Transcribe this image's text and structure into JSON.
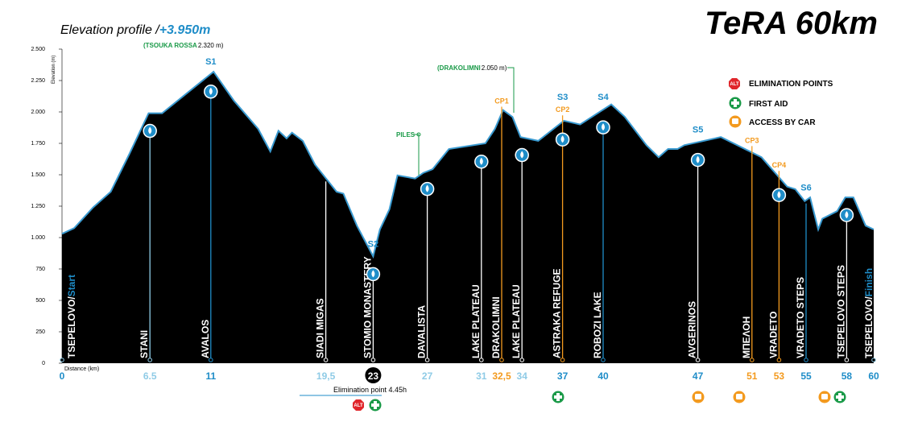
{
  "chart_data": {
    "type": "area",
    "title": "TeRA 60km",
    "subtitle": "Elevation profile / ",
    "total_gain": "+3.950m",
    "ylabel": "Elevation (m)",
    "xlabel": "Distance (km)",
    "color": "#000000",
    "line_color": "#3a9ad0",
    "xlim": [
      0,
      60
    ],
    "ylim": [
      0,
      2500
    ],
    "yticks": [
      0,
      250,
      500,
      750,
      {
        "value": 1000,
        "label": "1.000"
      },
      {
        "value": 1250,
        "label": "1.250"
      },
      {
        "value": 1500,
        "label": "1.500"
      },
      {
        "value": 1750,
        "label": "1.750"
      },
      {
        "value": 2000,
        "label": "2.000"
      },
      {
        "value": 2250,
        "label": "2.250"
      },
      {
        "value": 2500,
        "label": "2.500"
      }
    ],
    "x": [
      0,
      0.9,
      2.3,
      3.6,
      5.0,
      6.4,
      7.4,
      11.2,
      12.7,
      14.5,
      15.4,
      16.0,
      16.6,
      17.0,
      17.8,
      18.7,
      20.3,
      20.8,
      21.8,
      23.0,
      23.5,
      24.2,
      24.8,
      26.1,
      26.7,
      27.4,
      28.6,
      31.3,
      32.0,
      32.6,
      33.3,
      33.9,
      35.2,
      37.1,
      38.3,
      40.6,
      41.6,
      43.2,
      44.1,
      44.8,
      45.5,
      46.0,
      48.7,
      51.7,
      53.6,
      54.2,
      54.9,
      55.3,
      55.9,
      56.2,
      57.3,
      57.9,
      58.5,
      59.4,
      60
    ],
    "values": [
      1030,
      1075,
      1240,
      1365,
      1670,
      1990,
      1990,
      2320,
      2090,
      1865,
      1685,
      1850,
      1790,
      1835,
      1770,
      1580,
      1365,
      1350,
      1095,
      850,
      1065,
      1225,
      1495,
      1470,
      1515,
      1545,
      1705,
      1750,
      1865,
      2015,
      1960,
      1800,
      1770,
      1930,
      1900,
      2060,
      1960,
      1735,
      1640,
      1705,
      1705,
      1735,
      1800,
      1640,
      1405,
      1385,
      1290,
      1320,
      1065,
      1150,
      1210,
      1320,
      1320,
      1095,
      1065
    ],
    "xticks": [
      {
        "value": 0,
        "label": "0",
        "color": "#1f8dc8"
      },
      {
        "value": 6.5,
        "label": "6.5",
        "color": "#8fcbe6"
      },
      {
        "value": 11,
        "label": "11",
        "color": "#1f8dc8"
      },
      {
        "value": 19.5,
        "label": "19,5",
        "color": "#8fcbe6"
      },
      {
        "value": 23,
        "label": "23",
        "color": "#ffffff",
        "circled": true
      },
      {
        "value": 27,
        "label": "27",
        "color": "#8fcbe6"
      },
      {
        "value": 31,
        "label": "31",
        "color": "#8fcbe6"
      },
      {
        "value": 32.5,
        "label": "32,5",
        "color": "#f39a1e"
      },
      {
        "value": 34,
        "label": "34",
        "color": "#8fcbe6"
      },
      {
        "value": 37,
        "label": "37",
        "color": "#1f8dc8"
      },
      {
        "value": 40,
        "label": "40",
        "color": "#1f8dc8"
      },
      {
        "value": 47,
        "label": "47",
        "color": "#1f8dc8"
      },
      {
        "value": 51,
        "label": "51",
        "color": "#f39a1e"
      },
      {
        "value": 53,
        "label": "53",
        "color": "#f39a1e"
      },
      {
        "value": 55,
        "label": "55",
        "color": "#1f8dc8"
      },
      {
        "value": 58,
        "label": "58",
        "color": "#1f8dc8"
      },
      {
        "value": 60,
        "label": "60",
        "color": "#1f8dc8"
      }
    ],
    "waypoints": [
      {
        "name": "TSEPELOVO/",
        "suffix": "Start",
        "km": 0,
        "color": "#8fcbe6"
      },
      {
        "name": "STANI",
        "km": 6.5,
        "color": "#8fcbe6",
        "water": true
      },
      {
        "name": "AVALOS",
        "km": 11,
        "color": "#1f8dc8",
        "water": true
      },
      {
        "name": "SIADI MIGAS",
        "km": 19.5,
        "color": "#ffffff"
      },
      {
        "name": "STOMIO MONASTERY",
        "km": 23,
        "color": "#ffffff",
        "water": true
      },
      {
        "name": "DAVALISTA",
        "km": 27,
        "color": "#ffffff",
        "water": true
      },
      {
        "name": "LAKE PLATEAU",
        "km": 31,
        "color": "#ffffff",
        "water": true
      },
      {
        "name": "DRAKOLIMNI",
        "km": 32.5,
        "color": "#f39a1e"
      },
      {
        "name": "LAKE PLATEAU",
        "km": 34,
        "color": "#ffffff",
        "water": true
      },
      {
        "name": "ASTRAKA REFUGE",
        "km": 37,
        "color": "#f39a1e",
        "water": true
      },
      {
        "name": "ROBOZI LAKE",
        "km": 40,
        "color": "#1f8dc8",
        "water": true
      },
      {
        "name": "AVGERINOS",
        "km": 47,
        "color": "#ffffff",
        "water": true
      },
      {
        "name": "ΜΠΕΛΟΗ",
        "km": 51,
        "color": "#f39a1e"
      },
      {
        "name": "VRADETO",
        "km": 53,
        "color": "#f39a1e",
        "water": true
      },
      {
        "name": "VRADETO STEPS",
        "km": 55,
        "color": "#1f8dc8"
      },
      {
        "name": "TSEPELOVO STEPS",
        "km": 58,
        "color": "#ffffff",
        "water": true
      },
      {
        "name": "TSEPELOVO/",
        "suffix": "Finish",
        "km": 60,
        "color": "#8fcbe6"
      }
    ],
    "stations": [
      {
        "label": "S1",
        "km": 11,
        "color": "#1f8dc8"
      },
      {
        "label": "S2",
        "km": 23,
        "color": "#1f8dc8"
      },
      {
        "label": "CP1",
        "km": 32.5,
        "color": "#f39a1e"
      },
      {
        "label": "CP2",
        "km": 37,
        "color": "#f39a1e"
      },
      {
        "label": "S3",
        "km": 37,
        "color": "#1f8dc8"
      },
      {
        "label": "S4",
        "km": 40,
        "color": "#1f8dc8"
      },
      {
        "label": "S5",
        "km": 47,
        "color": "#1f8dc8"
      },
      {
        "label": "CP3",
        "km": 51,
        "color": "#f39a1e"
      },
      {
        "label": "CP4",
        "km": 53,
        "color": "#f39a1e"
      },
      {
        "label": "S6",
        "km": 55,
        "color": "#1f8dc8"
      }
    ],
    "annotations": [
      {
        "name": "(TSOUKA ROSSA ",
        "elevation": "2.320 m)"
      },
      {
        "name": "(DRAKOLIMNI ",
        "elevation": "2.050 m)"
      },
      {
        "name": "PILES"
      }
    ],
    "legend": [
      {
        "icon": "ALT",
        "text": "ELIMINATION POINTS"
      },
      {
        "text": "FIRST AID"
      },
      {
        "text": "ACCESS BY CAR"
      }
    ],
    "elimination": "Elimination point 4.45h"
  }
}
